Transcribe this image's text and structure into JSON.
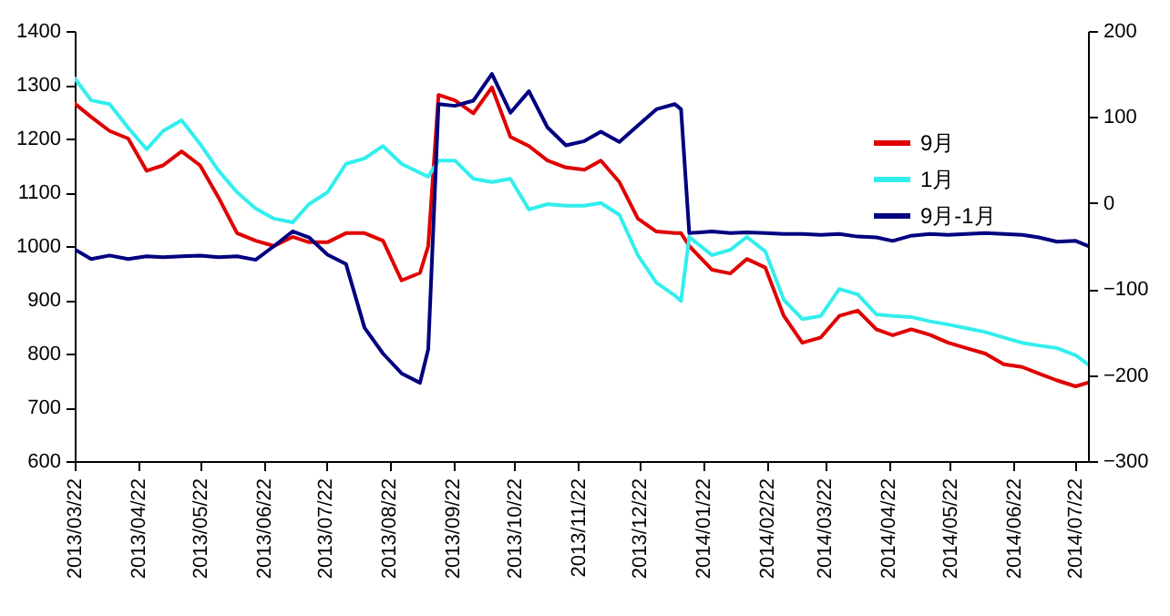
{
  "chart_data": {
    "type": "line",
    "x": [
      "2013-03-22",
      "2013-03-30",
      "2013-04-08",
      "2013-04-17",
      "2013-04-26",
      "2013-05-04",
      "2013-05-13",
      "2013-05-22",
      "2013-05-31",
      "2013-06-09",
      "2013-06-18",
      "2013-06-27",
      "2013-07-06",
      "2013-07-14",
      "2013-07-23",
      "2013-08-01",
      "2013-08-10",
      "2013-08-19",
      "2013-08-28",
      "2013-09-06",
      "2013-09-10",
      "2013-09-15",
      "2013-09-23",
      "2013-10-02",
      "2013-10-11",
      "2013-10-20",
      "2013-10-29",
      "2013-11-07",
      "2013-11-16",
      "2013-11-25",
      "2013-12-03",
      "2013-12-12",
      "2013-12-21",
      "2013-12-30",
      "2014-01-08",
      "2014-01-11",
      "2014-01-15",
      "2014-01-26",
      "2014-02-04",
      "2014-02-12",
      "2014-02-21",
      "2014-03-02",
      "2014-03-11",
      "2014-03-20",
      "2014-03-29",
      "2014-04-07",
      "2014-04-16",
      "2014-04-24",
      "2014-05-03",
      "2014-05-12",
      "2014-05-21",
      "2014-05-30",
      "2014-06-08",
      "2014-06-17",
      "2014-06-26",
      "2014-07-04",
      "2014-07-13",
      "2014-07-22",
      "2014-07-28"
    ],
    "series": [
      {
        "name": "9月",
        "color": "#e00000",
        "values": [
          1265,
          1240,
          1214,
          1200,
          1140,
          1150,
          1176,
          1150,
          1090,
          1024,
          1010,
          1000,
          1017,
          1007,
          1007,
          1024,
          1024,
          1010,
          936,
          950,
          1000,
          1281,
          1271,
          1247,
          1295,
          1203,
          1186,
          1159,
          1146,
          1142,
          1159,
          1119,
          1051,
          1027,
          1024,
          1024,
          1000,
          956,
          949,
          976,
          960,
          870,
          820,
          830,
          870,
          880,
          845,
          834,
          845,
          835,
          820,
          810,
          800,
          780,
          775,
          763,
          750,
          739,
          746
        ]
      },
      {
        "name": "1月",
        "color": "#33eeee",
        "values": [
          1312,
          1271,
          1264,
          1220,
          1180,
          1214,
          1234,
          1190,
          1140,
          1100,
          1070,
          1051,
          1044,
          1078,
          1100,
          1153,
          1163,
          1186,
          1153,
          1136,
          1129,
          1159,
          1159,
          1125,
          1119,
          1125,
          1068,
          1078,
          1075,
          1075,
          1080,
          1058,
          983,
          932,
          908,
          898,
          1017,
          983,
          993,
          1017,
          990,
          900,
          864,
          870,
          920,
          910,
          873,
          870,
          868,
          860,
          854,
          847,
          840,
          830,
          820,
          815,
          810,
          797,
          780
        ]
      },
      {
        "name": "9月-1月",
        "color": "#000080",
        "axis": "y2",
        "values": [
          -54,
          -65,
          -61,
          -65,
          -62,
          -63,
          -62,
          -61,
          -63,
          -62,
          -66,
          -50,
          -33,
          -40,
          -60,
          -71,
          -145,
          -175,
          -198,
          -209,
          -170,
          115,
          113,
          119,
          150,
          105,
          130,
          88,
          67,
          72,
          83,
          71,
          90,
          109,
          115,
          109,
          -35,
          -33,
          -35,
          -34,
          -35,
          -36,
          -36,
          -37,
          -36,
          -39,
          -40,
          -44,
          -38,
          -36,
          -37,
          -36,
          -35,
          -36,
          -37,
          -40,
          -45,
          -44,
          -50
        ]
      }
    ],
    "xlim": [
      "2013-03-22",
      "2014-07-28"
    ],
    "xticks": [
      {
        "value": "2013-03-22",
        "label": "2013/03/22"
      },
      {
        "value": "2013-04-22",
        "label": "2013/04/22"
      },
      {
        "value": "2013-05-22",
        "label": "2013/05/22"
      },
      {
        "value": "2013-06-22",
        "label": "2013/06/22"
      },
      {
        "value": "2013-07-22",
        "label": "2013/07/22"
      },
      {
        "value": "2013-08-22",
        "label": "2013/08/22"
      },
      {
        "value": "2013-09-22",
        "label": "2013/09/22"
      },
      {
        "value": "2013-10-22",
        "label": "2013/10/22"
      },
      {
        "value": "2013-11-22",
        "label": "2013/11/22"
      },
      {
        "value": "2013-12-22",
        "label": "2013/12/22"
      },
      {
        "value": "2014-01-22",
        "label": "2014/01/22"
      },
      {
        "value": "2014-02-22",
        "label": "2014/02/22"
      },
      {
        "value": "2014-03-22",
        "label": "2014/03/22"
      },
      {
        "value": "2014-04-22",
        "label": "2014/04/22"
      },
      {
        "value": "2014-05-22",
        "label": "2014/05/22"
      },
      {
        "value": "2014-06-22",
        "label": "2014/06/22"
      },
      {
        "value": "2014-07-22",
        "label": "2014/07/22"
      }
    ],
    "ylim": [
      600,
      1400
    ],
    "yticks": [
      600,
      700,
      800,
      900,
      1000,
      1100,
      1200,
      1300,
      1400
    ],
    "y2lim": [
      -300,
      200
    ],
    "y2ticks": [
      -300,
      -200,
      -100,
      0,
      100,
      200
    ],
    "legend": "top right",
    "marker": "none",
    "line_style": "solid"
  }
}
